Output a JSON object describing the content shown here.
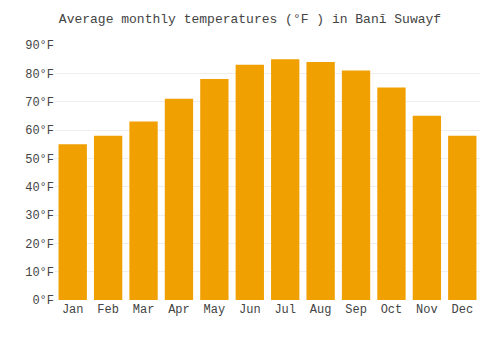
{
  "chart_data": {
    "type": "bar",
    "title": "Average monthly temperatures (°F ) in Banī Suwayf",
    "categories": [
      "Jan",
      "Feb",
      "Mar",
      "Apr",
      "May",
      "Jun",
      "Jul",
      "Aug",
      "Sep",
      "Oct",
      "Nov",
      "Dec"
    ],
    "values": [
      55,
      58,
      63,
      71,
      78,
      83,
      85,
      84,
      81,
      75,
      65,
      58
    ],
    "color": "#F0A000",
    "ylim": [
      0,
      90
    ],
    "yticks": [
      {
        "value": 0,
        "label": "0°F"
      },
      {
        "value": 10,
        "label": "10°F"
      },
      {
        "value": 20,
        "label": "20°F"
      },
      {
        "value": 30,
        "label": "30°F"
      },
      {
        "value": 40,
        "label": "40°F"
      },
      {
        "value": 50,
        "label": "50°F"
      },
      {
        "value": 60,
        "label": "60°F"
      },
      {
        "value": 70,
        "label": "70°F"
      },
      {
        "value": 80,
        "label": "80°F"
      },
      {
        "value": 90,
        "label": "90°F"
      }
    ],
    "grid": true
  }
}
